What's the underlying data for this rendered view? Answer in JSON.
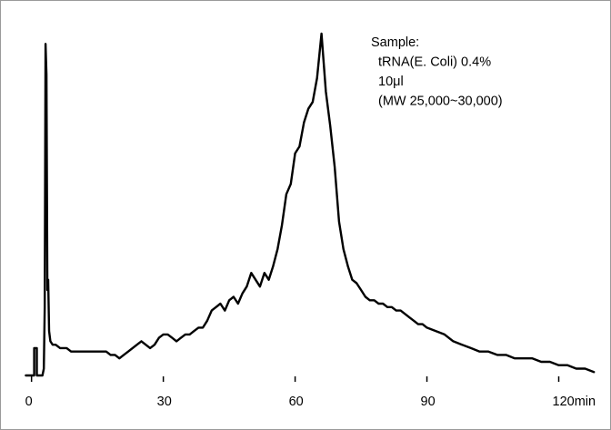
{
  "chart_data": {
    "type": "line",
    "title": "",
    "xlabel": "",
    "ylabel": "",
    "xlim": [
      -2,
      129
    ],
    "ylim": [
      0,
      100
    ],
    "x_unit": "min",
    "x_ticks": [
      {
        "value": 0,
        "label": "0"
      },
      {
        "value": 30,
        "label": "30"
      },
      {
        "value": 60,
        "label": "60"
      },
      {
        "value": 90,
        "label": "90"
      },
      {
        "value": 120,
        "label": "120min"
      }
    ],
    "grid": false,
    "legend": "none",
    "annotation": {
      "lines": [
        "Sample:",
        "tRNA(E. Coli)  0.4%",
        "10μl",
        "(MW 25,000~30,000)"
      ]
    },
    "series": [
      {
        "x": [
          -1.3,
          0.6,
          0.6,
          1.2,
          1.2,
          1.9,
          1.9,
          2.5,
          2.8,
          3.0,
          3.2,
          3.4,
          3.6,
          3.8,
          4.0,
          4.3,
          4.8,
          5.5,
          6.5,
          8,
          9,
          11,
          13,
          15,
          16,
          17,
          18,
          19,
          20,
          21,
          22,
          23,
          24,
          25,
          26,
          27,
          28,
          29,
          30,
          31,
          32,
          33,
          34,
          35,
          36,
          37,
          38,
          39,
          40,
          41,
          42,
          43,
          44,
          45,
          46,
          47,
          48,
          49,
          50,
          51,
          52,
          53,
          54,
          55,
          56,
          57,
          58,
          59,
          60,
          61,
          62,
          63,
          64,
          65,
          66,
          67,
          68,
          69,
          70,
          71,
          72,
          73,
          74,
          75,
          76,
          77,
          78,
          79,
          80,
          81,
          82,
          83,
          84,
          85,
          86,
          87,
          88,
          89,
          90,
          92,
          94,
          96,
          98,
          100,
          102,
          104,
          106,
          108,
          110,
          112,
          114,
          116,
          118,
          120,
          122,
          124,
          126,
          128
        ],
        "values": [
          0,
          0,
          8,
          8,
          0,
          0,
          0,
          0,
          2,
          20,
          97,
          88,
          25,
          28,
          13,
          10,
          9,
          9,
          8,
          8,
          7,
          7,
          7,
          7,
          7,
          7,
          6,
          6,
          5,
          6,
          7,
          8,
          9,
          10,
          9,
          8,
          9,
          11,
          12,
          12,
          11,
          10,
          11,
          12,
          12,
          13,
          14,
          14,
          16,
          19,
          20,
          21,
          19,
          22,
          23,
          21,
          24,
          26,
          30,
          28,
          26,
          30,
          28,
          32,
          37,
          44,
          53,
          56,
          65,
          67,
          74,
          78,
          80,
          87,
          100,
          83,
          73,
          61,
          45,
          37,
          32,
          28,
          27,
          25,
          23,
          22,
          22,
          21,
          21,
          20,
          20,
          19,
          19,
          18,
          17,
          16,
          15,
          15,
          14,
          13,
          12,
          10,
          9,
          8,
          7,
          7,
          6,
          6,
          5,
          5,
          5,
          4,
          4,
          3,
          3,
          2,
          2,
          1
        ],
        "color": "#000000"
      }
    ]
  }
}
